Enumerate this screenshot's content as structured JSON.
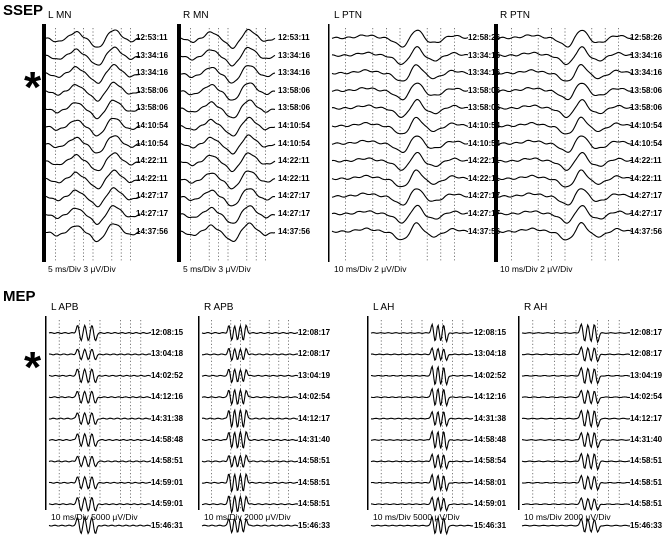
{
  "sections": [
    {
      "id": "ssep",
      "label": "SSEP",
      "marker": "*",
      "panels": [
        {
          "title": "L MN",
          "scale": "5 ms/Div   3 μV/Div",
          "waveform": "ssep-mn",
          "timestamps": [
            "12:53:11",
            "13:34:16",
            "13:34:16",
            "13:58:06",
            "13:58:06",
            "14:10:54",
            "14:10:54",
            "14:22:11",
            "14:22:11",
            "14:27:17",
            "14:27:17",
            "14:37:56"
          ]
        },
        {
          "title": "R MN",
          "scale": "5 ms/Div   3 μV/Div",
          "waveform": "ssep-mn",
          "timestamps": [
            "12:53:11",
            "13:34:16",
            "13:34:16",
            "13:58:06",
            "13:58:06",
            "14:10:54",
            "14:10:54",
            "14:22:11",
            "14:22:11",
            "14:27:17",
            "14:27:17",
            "14:37:56"
          ]
        },
        {
          "title": "L PTN",
          "scale": "10 ms/Div   2 μV/Div",
          "waveform": "ssep-ptn",
          "timestamps": [
            "12:58:26",
            "13:34:16",
            "13:34:16",
            "13:58:06",
            "13:58:06",
            "14:10:54",
            "14:10:54",
            "14:22:11",
            "14:22:11",
            "14:27:17",
            "14:27:17",
            "14:37:56"
          ]
        },
        {
          "title": "R PTN",
          "scale": "10 ms/Div   2 μV/Div",
          "waveform": "ssep-ptn",
          "timestamps": [
            "12:58:26",
            "13:34:16",
            "13:34:16",
            "13:58:06",
            "13:58:06",
            "14:10:54",
            "14:10:54",
            "14:22:11",
            "14:22:11",
            "14:27:17",
            "14:27:17",
            "14:37:56"
          ]
        }
      ]
    },
    {
      "id": "mep",
      "label": "MEP",
      "marker": "*",
      "panels": [
        {
          "title": "L APB",
          "scale": "10 ms/Div   5000 μV/Div",
          "waveform": "mep-early",
          "timestamps": [
            "12:08:15",
            "13:04:18",
            "14:02:52",
            "14:12:16",
            "14:31:38",
            "14:58:48",
            "14:58:51",
            "14:59:01",
            "14:59:01",
            "15:46:31"
          ]
        },
        {
          "title": "R APB",
          "scale": "10 ms/Div   2000 μV/Div",
          "waveform": "mep-mid",
          "timestamps": [
            "12:08:17",
            "12:08:17",
            "13:04:19",
            "14:02:54",
            "14:12:17",
            "14:31:40",
            "14:58:51",
            "14:58:51",
            "14:58:51",
            "15:46:33"
          ]
        },
        {
          "title": "L AH",
          "scale": "10 ms/Div   5000 μV/Div",
          "waveform": "mep-late",
          "timestamps": [
            "12:08:15",
            "13:04:18",
            "14:02:52",
            "14:12:16",
            "14:31:38",
            "14:58:48",
            "14:58:54",
            "14:58:01",
            "14:59:01",
            "15:46:31"
          ]
        },
        {
          "title": "R AH",
          "scale": "10 ms/Div   2000 μV/Div",
          "waveform": "mep-late2",
          "timestamps": [
            "12:08:17",
            "12:08:17",
            "13:04:19",
            "14:02:54",
            "14:12:17",
            "14:31:40",
            "14:58:51",
            "14:58:51",
            "14:58:51",
            "15:46:33"
          ]
        }
      ]
    }
  ]
}
